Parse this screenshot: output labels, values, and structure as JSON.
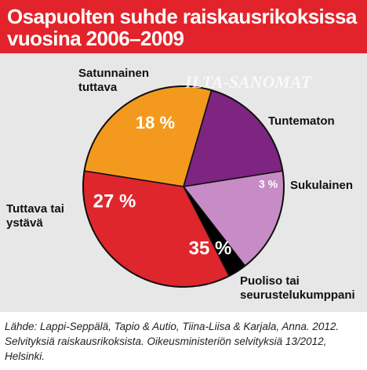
{
  "title": {
    "line1": "Osapuolten suhde raiskausrikoksissa",
    "line2": "vuosina 2006–2009"
  },
  "watermark": "ILTA-SANOMAT",
  "colors": {
    "header": "#e3232b",
    "panel": "#e7e7e7"
  },
  "chart_data": {
    "type": "pie",
    "title": "Osapuolten suhde raiskausrikoksissa vuosina 2006–2009",
    "slices": [
      {
        "label_lines": [
          "Tuntematon"
        ],
        "value": 17,
        "value_label": "17 %",
        "color": "#c78cc5"
      },
      {
        "label_lines": [
          "Sukulainen"
        ],
        "value": 3,
        "value_label": "3 %",
        "color": "#000000"
      },
      {
        "label_lines": [
          "Puoliso tai",
          "seurustelukumppani"
        ],
        "value": 35,
        "value_label": "35 %",
        "color": "#e0262d"
      },
      {
        "label_lines": [
          "Tuttava tai",
          "ystävä"
        ],
        "value": 27,
        "value_label": "27 %",
        "color": "#f39a1e"
      },
      {
        "label_lines": [
          "Satunnainen",
          "tuttava"
        ],
        "value": 18,
        "value_label": "18 %",
        "color": "#7e2481"
      }
    ]
  },
  "source": {
    "lines": [
      "Lähde: Lappi-Seppälä, Tapio & Autio, Tiina-Liisa & Karjala, Anna. 2012.",
      "Selvityksiä raiskausrikoksista. Oikeusministeriön selvityksiä 13/2012,",
      "Helsinki."
    ]
  }
}
